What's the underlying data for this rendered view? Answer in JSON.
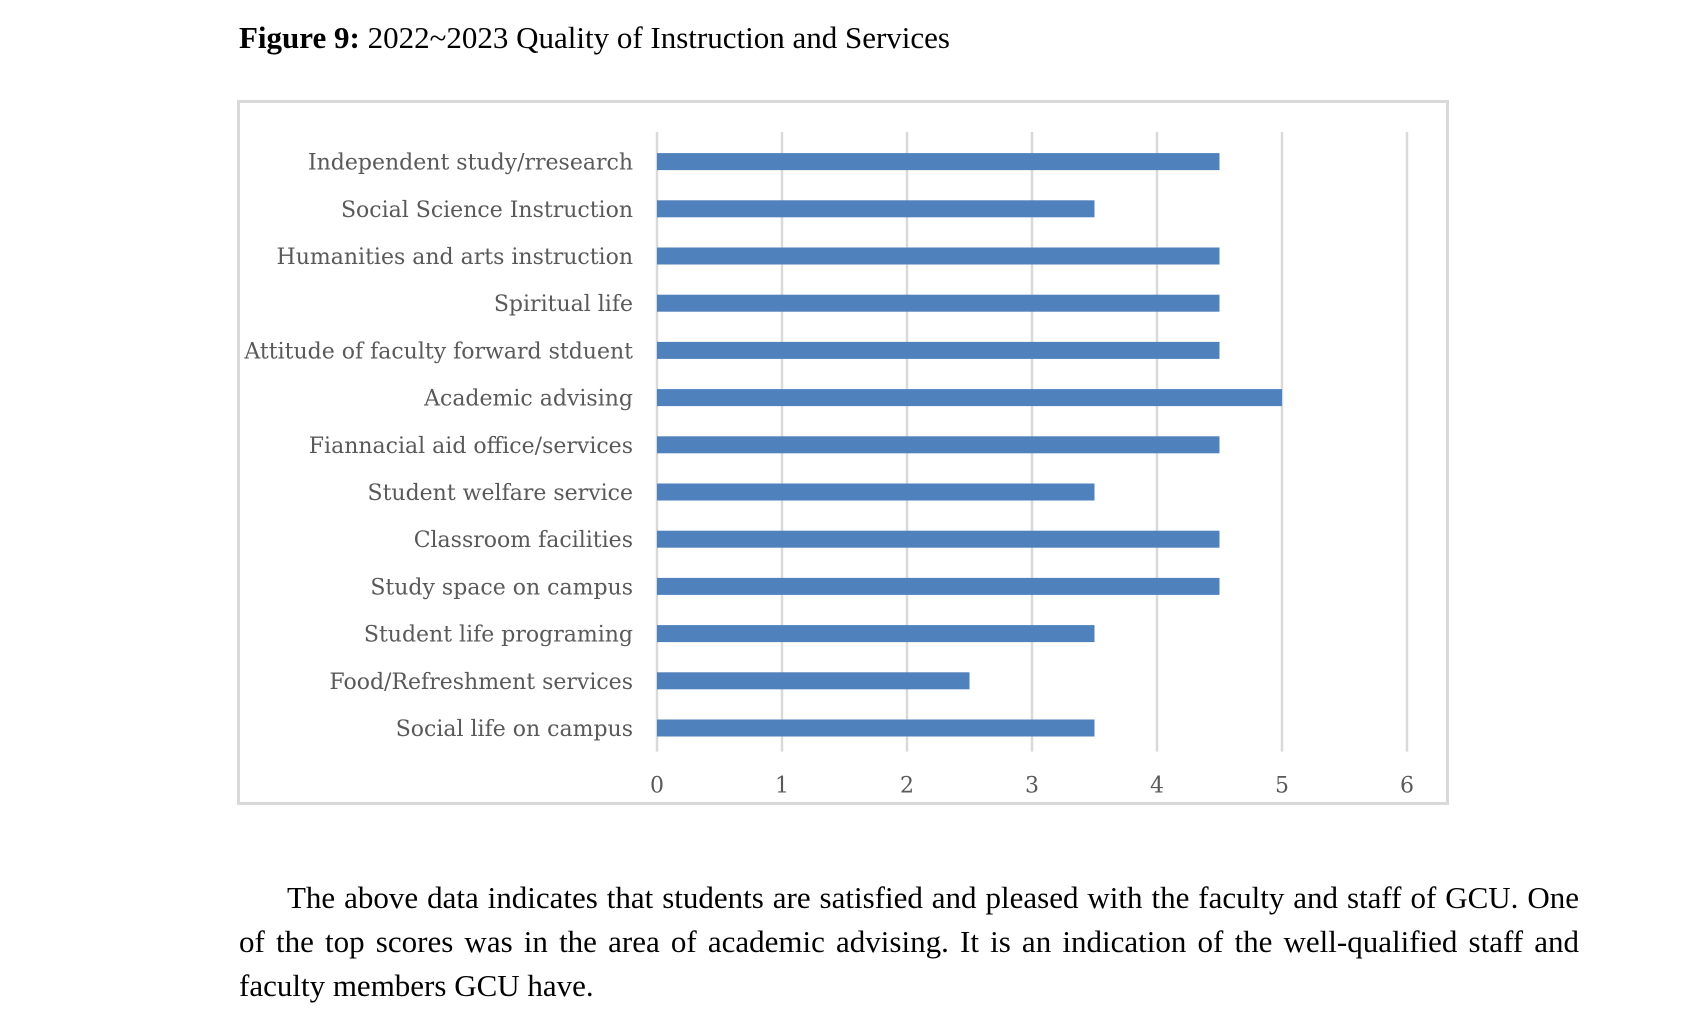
{
  "caption": {
    "label": "Figure 9:",
    "text": "2022~2023 Quality of Instruction and Services"
  },
  "chart_data": {
    "type": "bar",
    "orientation": "horizontal",
    "categories": [
      "Independent study/rresearch",
      "Social Science Instruction",
      "Humanities and arts instruction",
      "Spiritual life",
      "Attitude of faculty forward stduent",
      "Academic advising",
      "Fiannacial aid office/services",
      "Student welfare service",
      "Classroom facilities",
      "Study space on campus",
      "Student life programing",
      "Food/Refreshment services",
      "Social life on campus"
    ],
    "values": [
      4.5,
      3.5,
      4.5,
      4.5,
      4.5,
      5,
      4.5,
      3.5,
      4.5,
      4.5,
      3.5,
      2.5,
      3.5
    ],
    "xlim": [
      0,
      6
    ],
    "xticks": [
      "0",
      "1",
      "2",
      "3",
      "4",
      "5",
      "6"
    ],
    "grid": "vertical",
    "legend": "none",
    "bar_color": "#4f81bd",
    "grid_color": "#d9d9d9"
  },
  "body_text": "The above data indicates that students are satisfied and pleased with the faculty and staff of GCU. One of the top scores was in the area of academic advising. It is an indication of the well-qualified staff and faculty members GCU have."
}
